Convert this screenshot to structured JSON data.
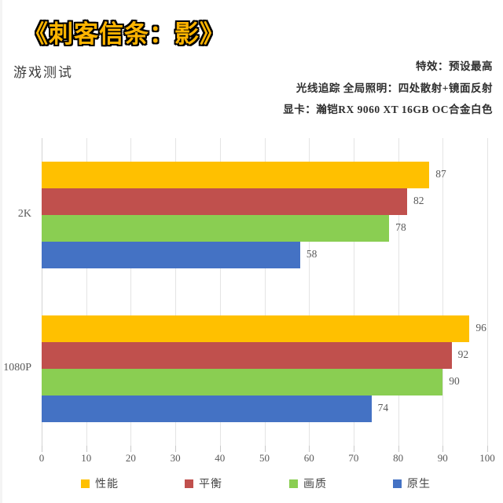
{
  "header": {
    "title": "《刺客信条：影》",
    "subtitle": "游戏测试",
    "info_lines": [
      "特效：预设最高",
      "光线追踪 全局照明：四处散射+镜面反射",
      "显卡：瀚铠RX 9060 XT 16GB OC合金白色"
    ]
  },
  "chart_data": {
    "type": "bar",
    "orientation": "horizontal",
    "title": "《刺客信条：影》 游戏测试",
    "categories": [
      "2K",
      "1080P"
    ],
    "series": [
      {
        "name": "性能",
        "color": "#FFC000",
        "values": [
          87,
          96
        ]
      },
      {
        "name": "平衡",
        "color": "#C0504D",
        "values": [
          82,
          92
        ]
      },
      {
        "name": "画质",
        "color": "#8ACE52",
        "values": [
          78,
          90
        ]
      },
      {
        "name": "原生",
        "color": "#4472C4",
        "values": [
          58,
          74
        ]
      }
    ],
    "xlim": [
      0,
      100
    ],
    "x_ticks": [
      0,
      10,
      20,
      30,
      40,
      50,
      60,
      70,
      80,
      90,
      100
    ],
    "grid": true,
    "value_labels": true,
    "legend_position": "bottom"
  },
  "layout": {
    "legend_item_lefts": [
      103,
      235,
      368,
      500
    ]
  },
  "colors": {
    "title_fill": "#FFB400",
    "title_outline": "#000000",
    "axis_text": "#595959",
    "gridline": "#e4e4e4"
  }
}
